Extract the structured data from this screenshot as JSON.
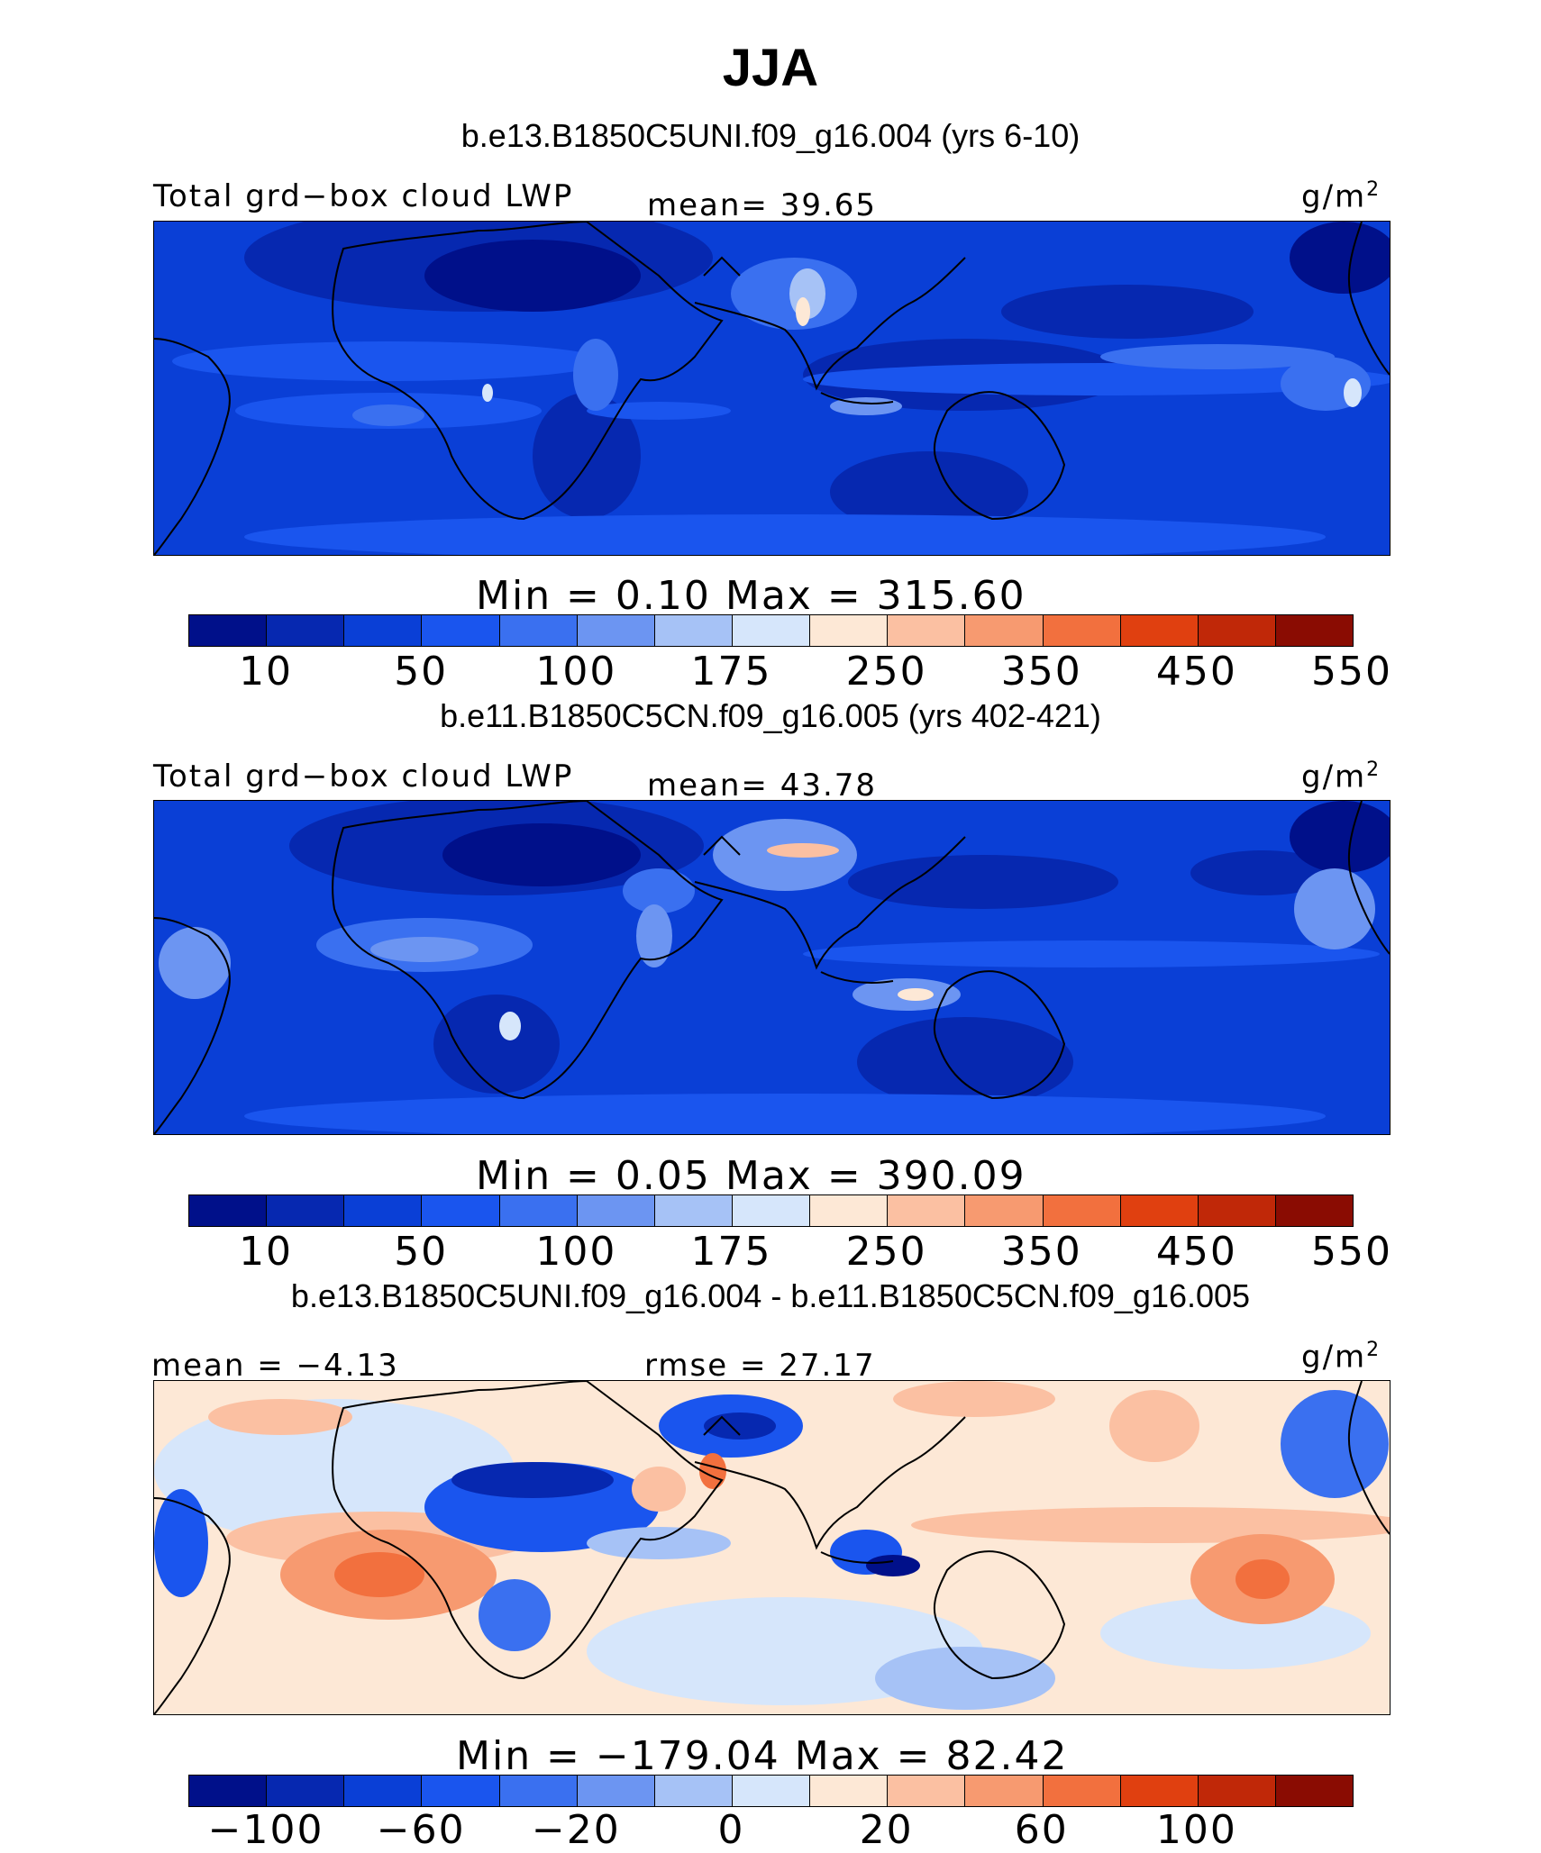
{
  "title": "JJA",
  "panels": [
    {
      "header": "b.e13.B1850C5UNI.f09_g16.004 (yrs 6-10)",
      "left_label": "Total grd−box cloud LWP",
      "mid_label": "mean=  39.65",
      "units": "g/m",
      "units_sup": "2",
      "minmax": "Min  =    0.10  Max  =  315.60",
      "colorbar_ticks": [
        "10",
        "50",
        "100",
        "175",
        "250",
        "350",
        "450",
        "550"
      ]
    },
    {
      "header": "b.e11.B1850C5CN.f09_g16.005 (yrs 402-421)",
      "left_label": "Total grd−box cloud LWP",
      "mid_label": "mean=  43.78",
      "units": "g/m",
      "units_sup": "2",
      "minmax": "Min  =    0.05  Max  =  390.09",
      "colorbar_ticks": [
        "10",
        "50",
        "100",
        "175",
        "250",
        "350",
        "450",
        "550"
      ]
    },
    {
      "header": "b.e13.B1850C5UNI.f09_g16.004 - b.e11.B1850C5CN.f09_g16.005",
      "left_label": "mean =  −4.13",
      "mid_label": "rmse =   27.17",
      "units": "g/m",
      "units_sup": "2",
      "minmax": "Min  = −179.04  Max  =   82.42",
      "colorbar_ticks": [
        "−100",
        "−60",
        "−20",
        "0",
        "20",
        "60",
        "100"
      ]
    }
  ],
  "colors": {
    "abs_scale": [
      "#00108a",
      "#0628b0",
      "#0a3fd6",
      "#1a55ee",
      "#3a70f0",
      "#6c95f2",
      "#a6c2f6",
      "#d6e6fb",
      "#fde8d6",
      "#fbc0a2",
      "#f79a70",
      "#f2703e",
      "#e04010",
      "#c02808",
      "#8a0c02"
    ],
    "diff_scale": [
      "#00108a",
      "#0628b0",
      "#0a3fd6",
      "#1a55ee",
      "#3a70f0",
      "#6c95f2",
      "#a6c2f6",
      "#d6e6fb",
      "#fde8d6",
      "#fbc0a2",
      "#f79a70",
      "#f2703e",
      "#e04010",
      "#c02808",
      "#8a0c02"
    ]
  }
}
